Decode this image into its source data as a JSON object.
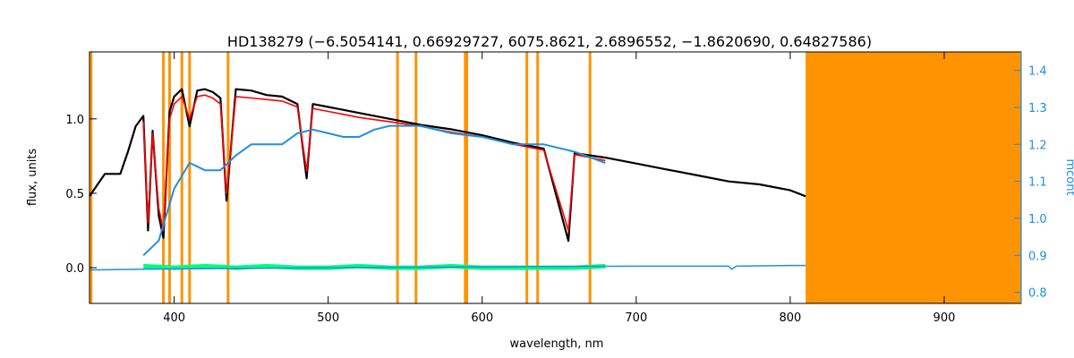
{
  "chart_data": {
    "type": "line",
    "title": "HD138279   (−6.5054141, 0.66929727, 6075.8621, 2.6896552, −1.8620690, 0.64827586)",
    "xlabel": "wavelength, nm",
    "ylabel": "flux, units",
    "ylabel_right": "mcont",
    "xlim": [
      345,
      950
    ],
    "ylim": [
      -0.24,
      1.45
    ],
    "ylim_right": [
      0.77,
      1.45
    ],
    "x_ticks": [
      400,
      500,
      600,
      700,
      800,
      900
    ],
    "x_tick_labels": [
      "400",
      "500",
      "600",
      "700",
      "800",
      "900"
    ],
    "y_ticks": [
      0.0,
      0.5,
      1.0
    ],
    "y_tick_labels": [
      "0.0",
      "0.5",
      "1.0"
    ],
    "y_right_ticks": [
      0.8,
      0.9,
      1.0,
      1.1,
      1.2,
      1.3,
      1.4
    ],
    "y_right_tick_labels": [
      "0.8",
      "0.9",
      "1.0",
      "1.1",
      "1.2",
      "1.3",
      "1.4"
    ],
    "grid": false,
    "masked_region": [
      810,
      950
    ],
    "masked_lines": [
      346,
      393,
      397,
      405,
      410,
      435,
      545,
      557,
      589,
      590,
      629,
      636,
      670
    ],
    "colors": {
      "observed": "#000000",
      "model": "#ff0000",
      "residual": "#00ff80",
      "continuum": "#1f8fe0",
      "mask": "#ff9400",
      "right_axis": "#1f8fe0"
    },
    "series": [
      {
        "key": "observed",
        "x": [
          345,
          355,
          365,
          370,
          375,
          380,
          383,
          386,
          390,
          393,
          397,
          400,
          405,
          410,
          415,
          420,
          425,
          430,
          434,
          440,
          450,
          460,
          470,
          480,
          486,
          490,
          500,
          510,
          520,
          540,
          560,
          580,
          600,
          620,
          640,
          656,
          660,
          680,
          700,
          720,
          740,
          760,
          780,
          800,
          810
        ],
        "y": [
          0.48,
          0.63,
          0.63,
          0.78,
          0.95,
          1.02,
          0.25,
          0.92,
          0.35,
          0.2,
          1.05,
          1.15,
          1.2,
          0.95,
          1.19,
          1.2,
          1.18,
          1.14,
          0.45,
          1.2,
          1.19,
          1.16,
          1.15,
          1.1,
          0.6,
          1.1,
          1.08,
          1.06,
          1.04,
          1.0,
          0.96,
          0.93,
          0.89,
          0.84,
          0.8,
          0.18,
          0.77,
          0.74,
          0.7,
          0.66,
          0.62,
          0.58,
          0.56,
          0.52,
          0.48
        ]
      },
      {
        "key": "model",
        "x": [
          380,
          383,
          386,
          390,
          393,
          397,
          400,
          405,
          410,
          415,
          420,
          425,
          430,
          434,
          440,
          450,
          460,
          470,
          480,
          486,
          490,
          500,
          510,
          520,
          540,
          560,
          580,
          600,
          620,
          640,
          656,
          660,
          680
        ],
        "y": [
          0.98,
          0.3,
          0.9,
          0.4,
          0.25,
          1.0,
          1.1,
          1.15,
          1.0,
          1.15,
          1.16,
          1.14,
          1.1,
          0.5,
          1.15,
          1.14,
          1.13,
          1.12,
          1.08,
          0.65,
          1.07,
          1.05,
          1.03,
          1.01,
          0.98,
          0.95,
          0.91,
          0.88,
          0.83,
          0.79,
          0.25,
          0.76,
          0.72
        ]
      },
      {
        "key": "residual",
        "x": [
          380,
          400,
          420,
          440,
          460,
          480,
          500,
          520,
          540,
          560,
          580,
          600,
          620,
          640,
          660,
          680
        ],
        "y": [
          0.01,
          0.0,
          0.01,
          0.0,
          0.01,
          0.0,
          0.0,
          0.01,
          0.0,
          0.0,
          0.01,
          0.0,
          0.0,
          0.0,
          0.0,
          0.01
        ]
      },
      {
        "key": "continuum",
        "axis": "right",
        "x": [
          380,
          390,
          400,
          410,
          420,
          430,
          440,
          450,
          460,
          470,
          480,
          490,
          500,
          510,
          520,
          530,
          540,
          560,
          580,
          600,
          620,
          640,
          660,
          680
        ],
        "y": [
          0.9,
          0.94,
          1.08,
          1.15,
          1.13,
          1.13,
          1.17,
          1.2,
          1.2,
          1.2,
          1.23,
          1.24,
          1.23,
          1.22,
          1.22,
          1.24,
          1.25,
          1.25,
          1.23,
          1.22,
          1.2,
          1.2,
          1.18,
          1.15
        ]
      },
      {
        "key": "continuum_tail",
        "axis": "left",
        "x": [
          345,
          380,
          500,
          700,
          760,
          762,
          765,
          800,
          810
        ],
        "y": [
          -0.015,
          -0.01,
          0.0,
          0.01,
          0.01,
          -0.01,
          0.01,
          0.015,
          0.015
        ]
      }
    ],
    "annotations": []
  }
}
